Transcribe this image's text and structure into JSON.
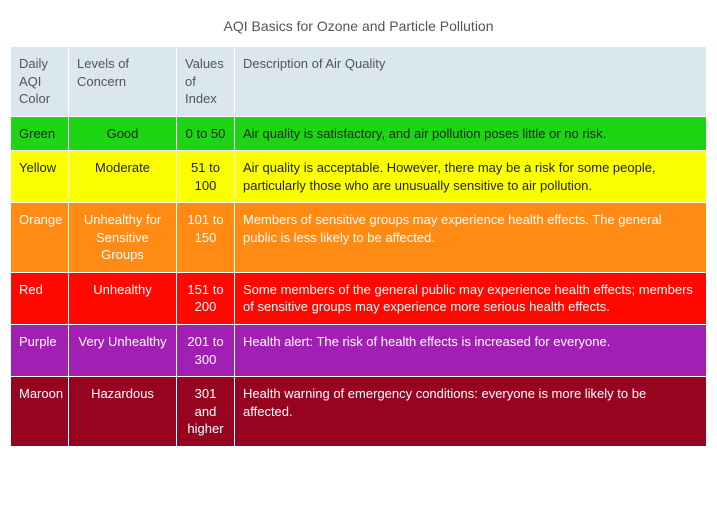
{
  "title": "AQI Basics for Ozone and Particle Pollution",
  "header_bg": "#dae7ef",
  "border_color": "#ffffff",
  "columns": [
    "Daily AQI Color",
    "Levels of Concern",
    "Values of Index",
    "Description of Air Quality"
  ],
  "rows": [
    {
      "color_name": "Green",
      "level": "Good",
      "values": "0 to 50",
      "description": "Air quality is satisfactory, and air pollution poses little or no risk.",
      "bg": "#1dd515",
      "text": "#222222"
    },
    {
      "color_name": "Yellow",
      "level": "Moderate",
      "values": "51 to 100",
      "description": "Air quality is acceptable. However, there may be a risk for some people, particularly those who are unusually sensitive to air pollution.",
      "bg": "#fbff00",
      "text": "#222222"
    },
    {
      "color_name": "Orange",
      "level": "Unhealthy for Sensitive Groups",
      "values": "101 to 150",
      "description": "Members of sensitive groups may experience health effects. The general public is less likely to be affected.",
      "bg": "#ff8a14",
      "text": "#ffffff"
    },
    {
      "color_name": "Red",
      "level": "Unhealthy",
      "values": "151 to 200",
      "description": "Some members of the general public may experience health effects; members of sensitive groups may experience more serious health effects.",
      "bg": "#ff0800",
      "text": "#ffffff"
    },
    {
      "color_name": "Purple",
      "level": "Very Unhealthy",
      "values": "201 to 300",
      "description": "Health alert: The risk of health effects is increased for everyone.",
      "bg": "#a21fb3",
      "text": "#ffffff"
    },
    {
      "color_name": "Maroon",
      "level": "Hazardous",
      "values": "301 and higher",
      "description": "Health warning of emergency conditions: everyone is more likely to be affected.",
      "bg": "#960420",
      "text": "#ffffff"
    }
  ]
}
